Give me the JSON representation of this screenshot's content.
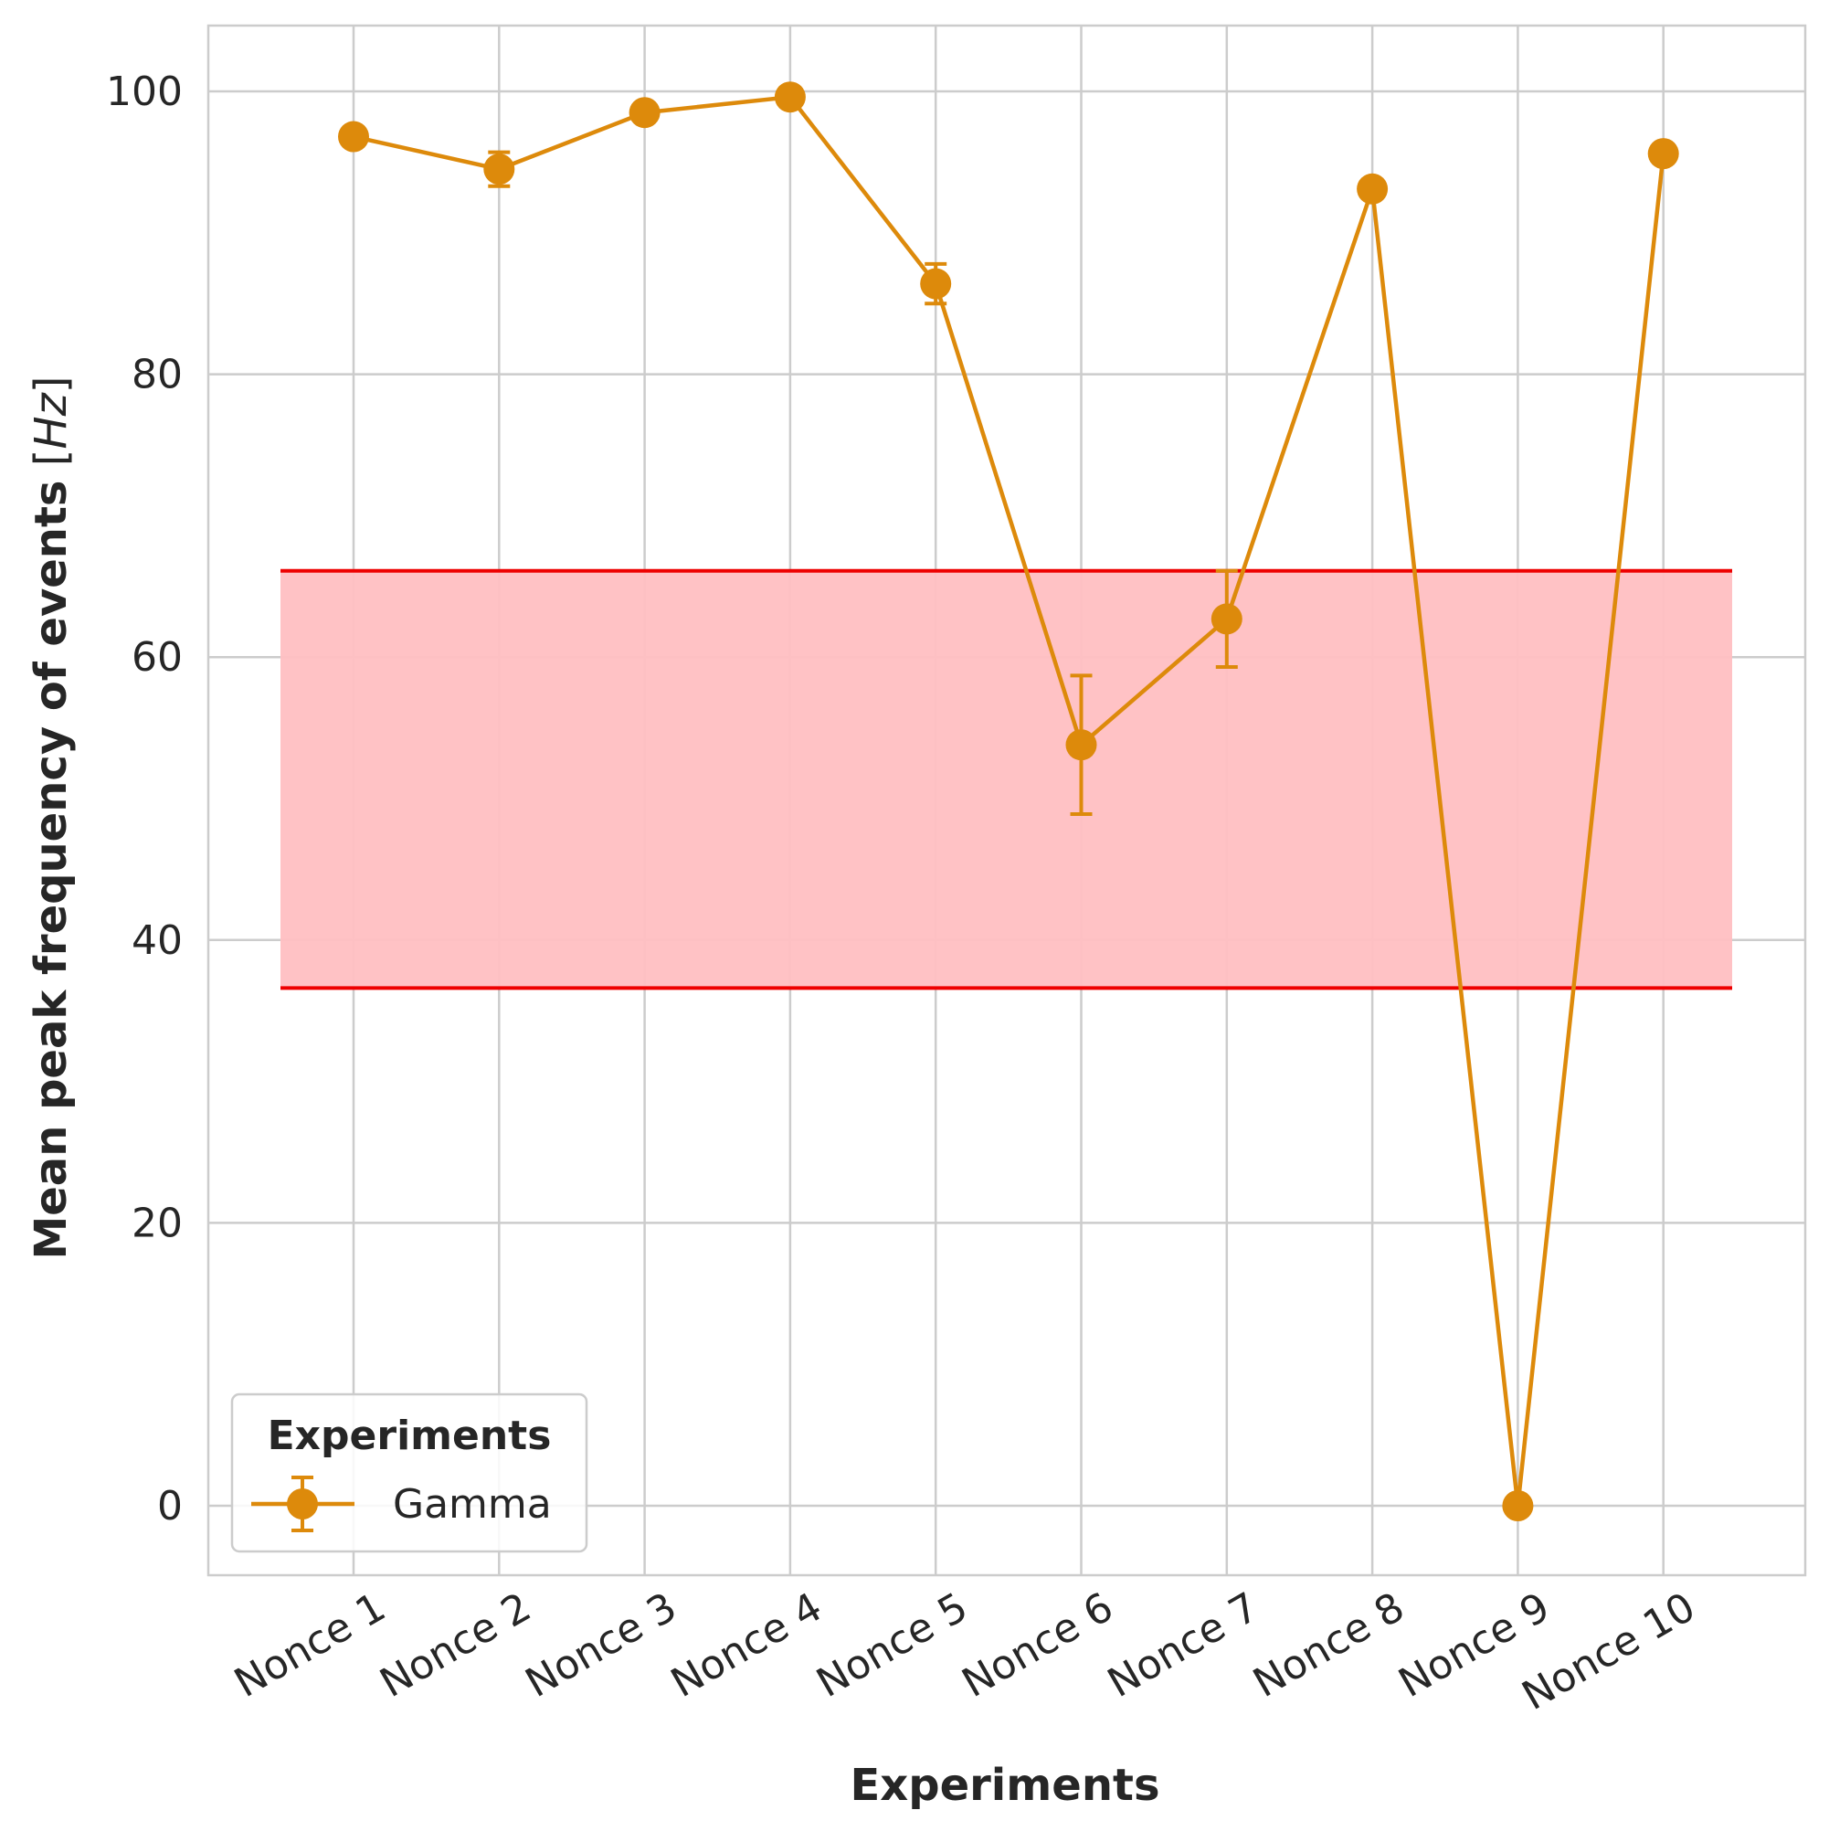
{
  "chart_data": {
    "type": "line",
    "xlabel": "Experiments",
    "ylabel": "Mean peak frequency of events [Hz]",
    "ylabel_main": "Mean peak frequency of events",
    "ylabel_unit": "Hz",
    "categories": [
      "Nonce 1",
      "Nonce 2",
      "Nonce 3",
      "Nonce 4",
      "Nonce 5",
      "Nonce 6",
      "Nonce 7",
      "Nonce 8",
      "Nonce 9",
      "Nonce 10"
    ],
    "ylim": [
      -5,
      105
    ],
    "yticks": [
      0,
      20,
      40,
      60,
      80,
      100
    ],
    "grid": true,
    "series": [
      {
        "name": "Gamma",
        "color": "#dd8a0b",
        "values": [
          96.8,
          94.5,
          98.5,
          99.6,
          86.4,
          53.8,
          62.7,
          93.1,
          0.0,
          95.6
        ],
        "errors": [
          0.6,
          1.2,
          0.6,
          0.5,
          1.4,
          4.9,
          3.4,
          0.4,
          0.0,
          0.5
        ]
      }
    ],
    "band": {
      "low": 36.6,
      "high": 66.1,
      "fill": "#ffbfc2",
      "edge": "#ee0000"
    },
    "legend": {
      "title": "Experiments",
      "placement": "lower-left"
    }
  }
}
